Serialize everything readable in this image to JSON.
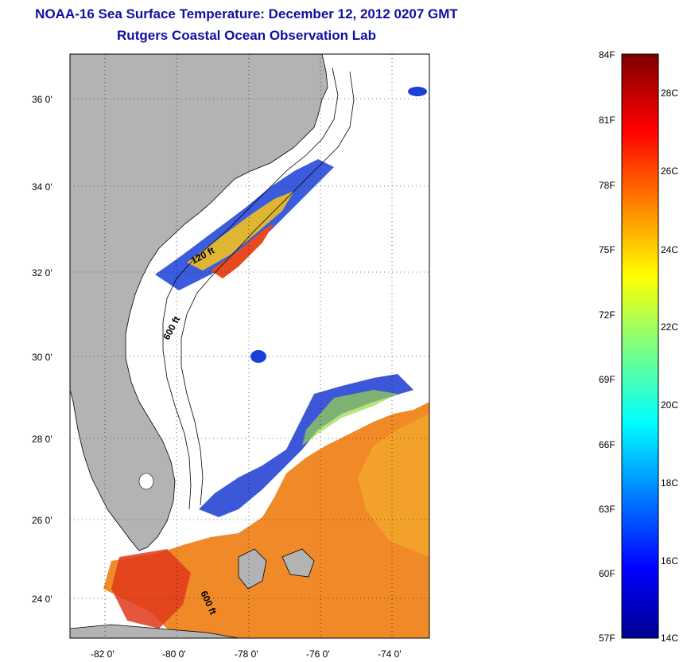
{
  "title": "NOAA-16 Sea Surface Temperature:  December 12, 2012 0207 GMT",
  "subtitle": "Rutgers Coastal Ocean Observation Lab",
  "map": {
    "lat_labels": [
      "36 0'",
      "34 0'",
      "32 0'",
      "30 0'",
      "28 0'",
      "26 0'",
      "24 0'"
    ],
    "lon_labels": [
      "-82 0'",
      "-80 0'",
      "-78 0'",
      "-76 0'",
      "-74 0'"
    ],
    "contour_labels": [
      "120 ft",
      "600 ft",
      "600 ft"
    ]
  },
  "colorbar": {
    "fahrenheit_labels": [
      "84F",
      "81F",
      "78F",
      "75F",
      "72F",
      "69F",
      "66F",
      "63F",
      "60F",
      "57F"
    ],
    "celsius_labels": [
      "28C",
      "26C",
      "24C",
      "22C",
      "20C",
      "18C",
      "16C",
      "14C"
    ]
  },
  "colors": {
    "land": "#b3b3b3",
    "title_text": "#1010a0",
    "warm_water": "#f08a28",
    "cold_water": "#1a3ad0"
  }
}
